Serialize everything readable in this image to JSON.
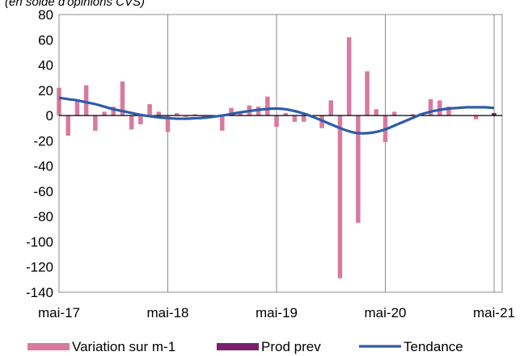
{
  "chart_data": {
    "type": "bar",
    "subtitle": "(en solde d'opinions CVS)",
    "x": [
      "2017-05",
      "2017-06",
      "2017-07",
      "2017-08",
      "2017-09",
      "2017-10",
      "2017-11",
      "2017-12",
      "2018-01",
      "2018-02",
      "2018-03",
      "2018-04",
      "2018-05",
      "2018-06",
      "2018-07",
      "2018-08",
      "2018-09",
      "2018-10",
      "2018-11",
      "2018-12",
      "2019-01",
      "2019-02",
      "2019-03",
      "2019-04",
      "2019-05",
      "2019-06",
      "2019-07",
      "2019-08",
      "2019-09",
      "2019-10",
      "2019-11",
      "2019-12",
      "2020-01",
      "2020-02",
      "2020-03",
      "2020-04",
      "2020-05",
      "2020-06",
      "2020-07",
      "2020-08",
      "2020-09",
      "2020-10",
      "2020-11",
      "2020-12",
      "2021-01",
      "2021-02",
      "2021-03",
      "2021-04",
      "2021-05"
    ],
    "x_tick_labels": [
      "mai-17",
      "mai-18",
      "mai-19",
      "mai-20",
      "mai-21"
    ],
    "y_tick_labels": [
      "80",
      "60",
      "40",
      "20",
      "0",
      "-20",
      "-40",
      "-60",
      "-80",
      "-100",
      "-120",
      "-140"
    ],
    "ylim": [
      -140,
      80
    ],
    "ystep": 20,
    "grid": "vertical at yearly ticks",
    "legend_position": "bottom",
    "series": [
      {
        "name": "Variation sur m-1",
        "kind": "bar",
        "color": "#d87aa0",
        "values": [
          22,
          -16,
          12,
          24,
          -12,
          3,
          7,
          27,
          -11,
          -7,
          9,
          3,
          -13,
          2,
          -1,
          1,
          -1,
          0,
          -12,
          6,
          3,
          8,
          7,
          15,
          -9,
          2,
          -5,
          -5,
          0,
          -10,
          12,
          -129,
          62,
          -85,
          35,
          5,
          -21,
          3,
          0,
          1,
          2,
          13,
          12,
          7,
          0,
          0,
          -3,
          0,
          0
        ]
      },
      {
        "name": "Prod prev",
        "kind": "bar",
        "color": "#7a1f6e",
        "values": [
          null,
          null,
          null,
          null,
          null,
          null,
          null,
          null,
          null,
          null,
          null,
          null,
          null,
          null,
          null,
          null,
          null,
          null,
          null,
          null,
          null,
          null,
          null,
          null,
          null,
          null,
          null,
          null,
          null,
          null,
          null,
          null,
          null,
          null,
          null,
          null,
          null,
          null,
          null,
          null,
          null,
          null,
          null,
          null,
          null,
          null,
          null,
          null,
          2
        ]
      },
      {
        "name": "Tendance",
        "kind": "line",
        "color": "#2e5ca8",
        "values": [
          14,
          13,
          12,
          10.5,
          9,
          7,
          5,
          3.5,
          2,
          0.5,
          -0.5,
          -1.5,
          -2,
          -2.5,
          -2.5,
          -2.2,
          -1.8,
          -1,
          0,
          1.2,
          2.5,
          3.5,
          4.5,
          5.2,
          5.5,
          5,
          3.5,
          1.5,
          -1,
          -4,
          -7,
          -10,
          -12.5,
          -14,
          -14,
          -13,
          -11,
          -8,
          -5,
          -2,
          1,
          3,
          4.5,
          5.5,
          6,
          6.5,
          6.5,
          6.5,
          6
        ]
      }
    ]
  }
}
